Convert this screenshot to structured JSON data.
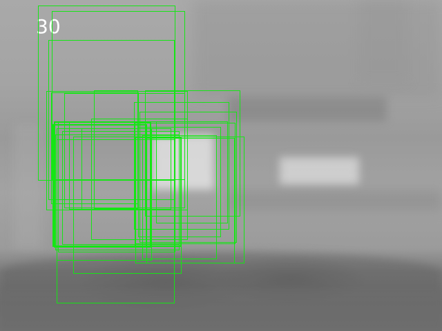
{
  "overlay": {
    "frame_number": "30",
    "box_color": "#14e614",
    "text_color": "#ffffff"
  }
}
